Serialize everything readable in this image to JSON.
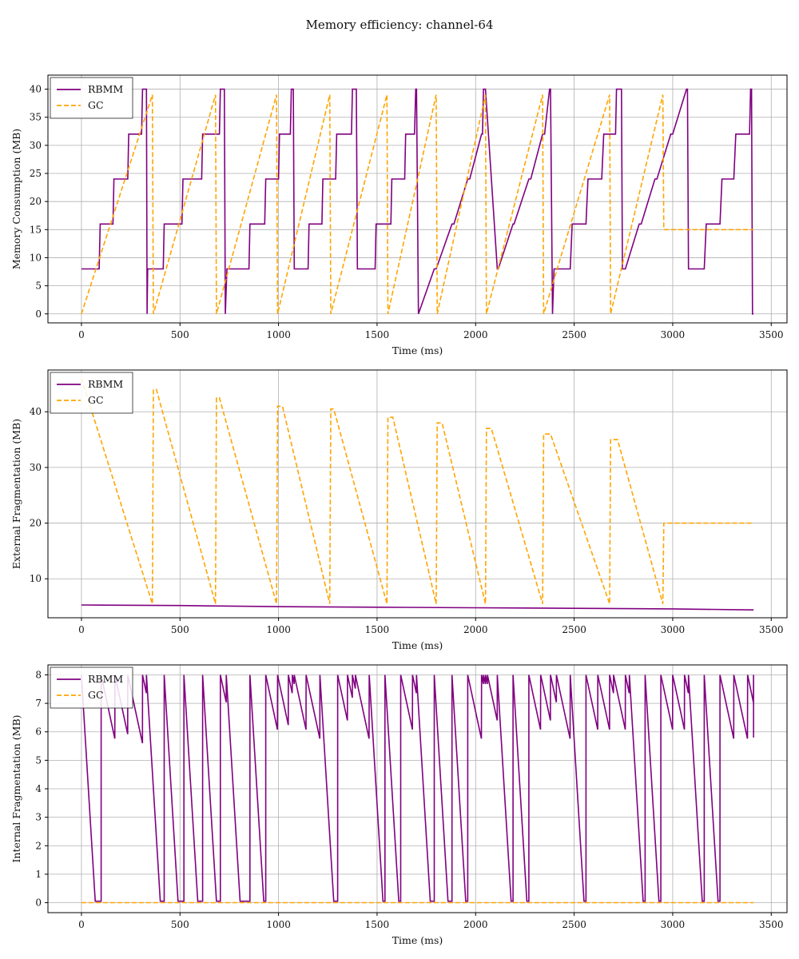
{
  "figure_title": "Memory efficiency: channel-64",
  "colors": {
    "rbmm": "#800080",
    "gc": "#FFA500",
    "grid": "#b0b0b0",
    "axis": "#000000"
  },
  "chart_data": [
    {
      "type": "line",
      "title": "",
      "xlabel": "Time (ms)",
      "ylabel": "Memory Consumption (MB)",
      "xlim": [
        -170,
        3580
      ],
      "ylim": [
        -1.6,
        42.5
      ],
      "xticks": [
        0,
        500,
        1000,
        1500,
        2000,
        2500,
        3000,
        3500
      ],
      "yticks": [
        0,
        5,
        10,
        15,
        20,
        25,
        30,
        35,
        40
      ],
      "grid": true,
      "legend": "upper-left",
      "series": [
        {
          "name": "RBMM",
          "style": "solid",
          "color": "#800080",
          "x": [
            0,
            90,
            95,
            160,
            165,
            235,
            240,
            305,
            310,
            330,
            333,
            336,
            415,
            420,
            510,
            515,
            610,
            615,
            700,
            705,
            725,
            730,
            738,
            740,
            755,
            850,
            855,
            930,
            935,
            1000,
            1005,
            1060,
            1065,
            1075,
            1080,
            1150,
            1155,
            1220,
            1225,
            1290,
            1295,
            1370,
            1375,
            1395,
            1400,
            1420,
            1430,
            1490,
            1495,
            1570,
            1575,
            1640,
            1645,
            1690,
            1696,
            1700,
            1710,
            1790,
            1800,
            1880,
            1890,
            1960,
            1970,
            2030,
            2035,
            2040,
            2050,
            2110,
            2115,
            2190,
            2195,
            2270,
            2280,
            2340,
            2350,
            2375,
            2380,
            2390,
            2398,
            2400,
            2410,
            2480,
            2490,
            2560,
            2570,
            2640,
            2650,
            2710,
            2715,
            2740,
            2745,
            2750,
            2756,
            2760,
            2830,
            2840,
            2910,
            2920,
            2990,
            3000,
            3070,
            3075,
            3080,
            3095,
            3160,
            3170,
            3240,
            3250,
            3310,
            3320,
            3390,
            3395,
            3400,
            3405,
            3410
          ],
          "y": [
            8,
            8,
            16,
            16,
            24,
            24,
            32,
            32,
            40,
            40,
            0,
            8,
            8,
            16,
            16,
            24,
            24,
            32,
            32,
            40,
            40,
            0,
            8,
            8,
            8,
            8,
            16,
            16,
            24,
            24,
            32,
            32,
            40,
            40,
            8,
            8,
            16,
            16,
            24,
            24,
            32,
            32,
            40,
            40,
            8,
            8,
            8,
            8,
            16,
            16,
            24,
            24,
            32,
            32,
            40,
            40,
            0,
            8,
            8,
            16,
            16,
            24,
            24,
            32,
            32,
            40,
            40,
            8,
            8,
            16,
            16,
            24,
            24,
            32,
            32,
            40,
            40,
            0,
            8,
            8,
            8,
            8,
            16,
            16,
            24,
            24,
            32,
            32,
            40,
            40,
            8,
            8,
            8,
            8,
            16,
            16,
            24,
            24,
            32,
            32,
            40,
            40,
            8,
            8,
            8,
            16,
            16,
            24,
            24,
            32,
            32,
            40,
            40,
            0,
            0
          ]
        },
        {
          "name": "GC",
          "style": "dashed",
          "color": "#FFA500",
          "x": [
            0,
            360,
            365,
            680,
            685,
            990,
            995,
            1260,
            1265,
            1550,
            1555,
            1800,
            1805,
            2050,
            2055,
            2340,
            2345,
            2680,
            2685,
            2950,
            2955,
            3410
          ],
          "y": [
            0,
            39,
            0,
            39,
            0,
            39,
            0,
            39,
            0,
            39,
            0,
            39,
            0,
            39,
            0,
            39,
            0,
            39,
            0,
            39,
            15,
            15
          ]
        }
      ]
    },
    {
      "type": "line",
      "title": "",
      "xlabel": "Time (ms)",
      "ylabel": "External Fragmentation (MB)",
      "xlim": [
        -170,
        3580
      ],
      "ylim": [
        3.0,
        47.5
      ],
      "xticks": [
        0,
        500,
        1000,
        1500,
        2000,
        2500,
        3000,
        3500
      ],
      "yticks": [
        10,
        20,
        30,
        40
      ],
      "grid": true,
      "legend": "upper-left",
      "series": [
        {
          "name": "RBMM",
          "style": "solid",
          "color": "#800080",
          "x": [
            0,
            500,
            1000,
            1500,
            2000,
            2500,
            3000,
            3410
          ],
          "y": [
            5.3,
            5.2,
            5.0,
            4.9,
            4.8,
            4.7,
            4.6,
            4.4
          ]
        },
        {
          "name": "GC",
          "style": "dashed",
          "color": "#FFA500",
          "x": [
            0,
            360,
            365,
            380,
            680,
            685,
            700,
            990,
            995,
            1020,
            1260,
            1265,
            1280,
            1550,
            1555,
            1580,
            1800,
            1805,
            1830,
            2050,
            2055,
            2080,
            2340,
            2345,
            2380,
            2680,
            2685,
            2720,
            2950,
            2955,
            3410
          ],
          "y": [
            46,
            5.5,
            44,
            44,
            5.5,
            42.5,
            42.5,
            5.5,
            41,
            41,
            5.5,
            40.5,
            40.5,
            5.5,
            39,
            39,
            5.5,
            38,
            38,
            5.5,
            37,
            37,
            5.5,
            36,
            36,
            5.5,
            35,
            35,
            5.5,
            20,
            20
          ]
        }
      ]
    },
    {
      "type": "line",
      "title": "",
      "xlabel": "Time (ms)",
      "ylabel": "Internal Fragmentation (MB)",
      "xlim": [
        -170,
        3580
      ],
      "ylim": [
        -0.35,
        8.35
      ],
      "xticks": [
        0,
        500,
        1000,
        1500,
        2000,
        2500,
        3000,
        3500
      ],
      "yticks": [
        0,
        1,
        2,
        3,
        4,
        5,
        6,
        7,
        8
      ],
      "grid": true,
      "legend": "upper-left",
      "series": [
        {
          "name": "RBMM",
          "style": "solid",
          "color": "#800080",
          "peaks": [
            0,
            100,
            170,
            235,
            310,
            330,
            420,
            520,
            615,
            705,
            735,
            855,
            935,
            995,
            1050,
            1070,
            1080,
            1140,
            1210,
            1300,
            1350,
            1375,
            1390,
            1460,
            1540,
            1620,
            1680,
            1700,
            1790,
            1880,
            1960,
            2030,
            2040,
            2050,
            2060,
            2110,
            2190,
            2270,
            2330,
            2380,
            2410,
            2480,
            2560,
            2620,
            2680,
            2700,
            2760,
            2780,
            2860,
            2940,
            3000,
            3060,
            3080,
            3160,
            3240,
            3310,
            3380,
            3410
          ],
          "drop_ms": 70,
          "values_note_free": true
        },
        {
          "name": "GC",
          "style": "dashed",
          "color": "#FFA500",
          "x": [
            0,
            3410
          ],
          "y": [
            0,
            0
          ]
        }
      ]
    }
  ]
}
